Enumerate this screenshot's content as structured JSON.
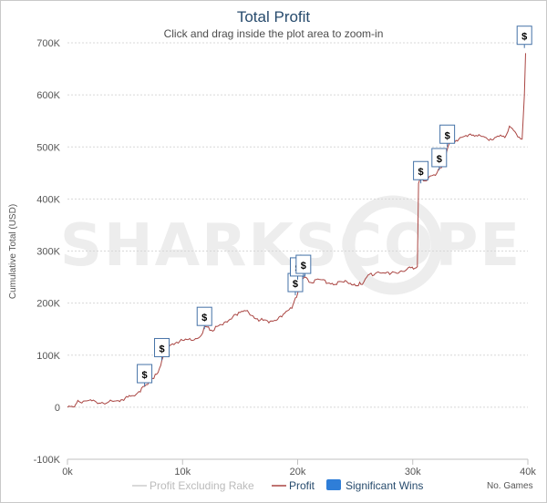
{
  "chart_data": {
    "type": "line",
    "title": "Total Profit",
    "subtitle": "Click and drag inside the plot area to zoom-in",
    "ylabel": "Cumulative Total (USD)",
    "xlabel_note": "No. Games",
    "x_ticks": [
      "0k",
      "10k",
      "20k",
      "30k",
      "40k"
    ],
    "y_ticks": [
      "-100K",
      "0",
      "100K",
      "200K",
      "300K",
      "400K",
      "500K",
      "600K",
      "700K"
    ],
    "xlim": [
      0,
      40000
    ],
    "ylim": [
      -100000,
      700000
    ],
    "grid": true,
    "legend_position": "bottom",
    "watermark": "SHARKSCOPE",
    "series": [
      {
        "name": "Profit Excluding Rake",
        "color": "#cccccc",
        "x": [],
        "y": []
      },
      {
        "name": "Profit",
        "color": "#aa4643",
        "x": [
          0,
          500,
          800,
          1000,
          1500,
          2500,
          3500,
          4200,
          5000,
          5600,
          6200,
          6700,
          7100,
          7500,
          8000,
          8200,
          8600,
          9000,
          9500,
          10500,
          11500,
          12000,
          12500,
          13500,
          14500,
          15500,
          16500,
          17500,
          18500,
          19500,
          19800,
          20000,
          20200,
          20600,
          21000,
          22000,
          23000,
          24000,
          25500,
          26000,
          27000,
          28000,
          29000,
          29500,
          30400,
          30500,
          30800,
          31200,
          31700,
          32100,
          32500,
          33000,
          33300,
          34000,
          35000,
          36000,
          36500,
          37500,
          38000,
          38400,
          39000,
          39500,
          39700,
          39800
        ],
        "y": [
          0,
          500,
          8000,
          11000,
          12000,
          10000,
          9000,
          12000,
          17000,
          22000,
          30000,
          40000,
          50000,
          55000,
          75000,
          90000,
          112000,
          120000,
          125000,
          130000,
          135000,
          155000,
          148000,
          158000,
          178000,
          185000,
          170000,
          162000,
          175000,
          190000,
          210000,
          218000,
          245000,
          250000,
          240000,
          245000,
          238000,
          240000,
          236000,
          250000,
          260000,
          255000,
          262000,
          265000,
          270000,
          430000,
          440000,
          435000,
          445000,
          450000,
          460000,
          495000,
          510000,
          515000,
          525000,
          520000,
          515000,
          520000,
          518000,
          540000,
          525000,
          515000,
          600000,
          680000
        ]
      },
      {
        "name": "Significant Wins",
        "color": "#2f7ed8",
        "x": [
          6700,
          8200,
          11900,
          19800,
          20000,
          20500,
          30700,
          32300,
          33000,
          39700
        ],
        "y": [
          40000,
          90000,
          150000,
          215000,
          245000,
          250000,
          430000,
          455000,
          500000,
          690000
        ]
      }
    ]
  }
}
